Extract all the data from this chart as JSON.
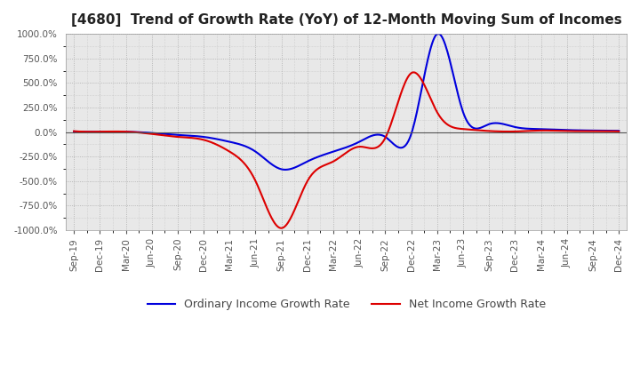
{
  "title": "[4680]  Trend of Growth Rate (YoY) of 12-Month Moving Sum of Incomes",
  "title_fontsize": 11,
  "ylim": [
    -1000,
    1000
  ],
  "yticks": [
    -1000,
    -750,
    -500,
    -250,
    0,
    250,
    500,
    750,
    1000
  ],
  "background_color": "#ffffff",
  "plot_background": "#e8e8e8",
  "grid_color": "#aaaaaa",
  "line_blue": "#0000dd",
  "line_red": "#dd0000",
  "legend_labels": [
    "Ordinary Income Growth Rate",
    "Net Income Growth Rate"
  ],
  "xtick_labels": [
    "Sep-19",
    "Dec-19",
    "Mar-20",
    "Jun-20",
    "Sep-20",
    "Dec-20",
    "Mar-21",
    "Jun-21",
    "Sep-21",
    "Dec-21",
    "Mar-22",
    "Jun-22",
    "Sep-22",
    "Dec-22",
    "Mar-23",
    "Jun-23",
    "Sep-23",
    "Dec-23",
    "Mar-24",
    "Jun-24",
    "Sep-24",
    "Dec-24"
  ],
  "ordinary_income_growth": [
    5,
    2,
    2,
    -10,
    -30,
    -50,
    -100,
    -200,
    -380,
    -300,
    -200,
    -100,
    -50,
    -20,
    1000,
    200,
    80,
    50,
    30,
    20,
    15,
    12
  ],
  "net_income_growth": [
    8,
    3,
    3,
    -20,
    -50,
    -80,
    -200,
    -500,
    -980,
    -500,
    -300,
    -150,
    -60,
    600,
    200,
    30,
    10,
    5,
    15,
    10,
    8,
    6
  ]
}
